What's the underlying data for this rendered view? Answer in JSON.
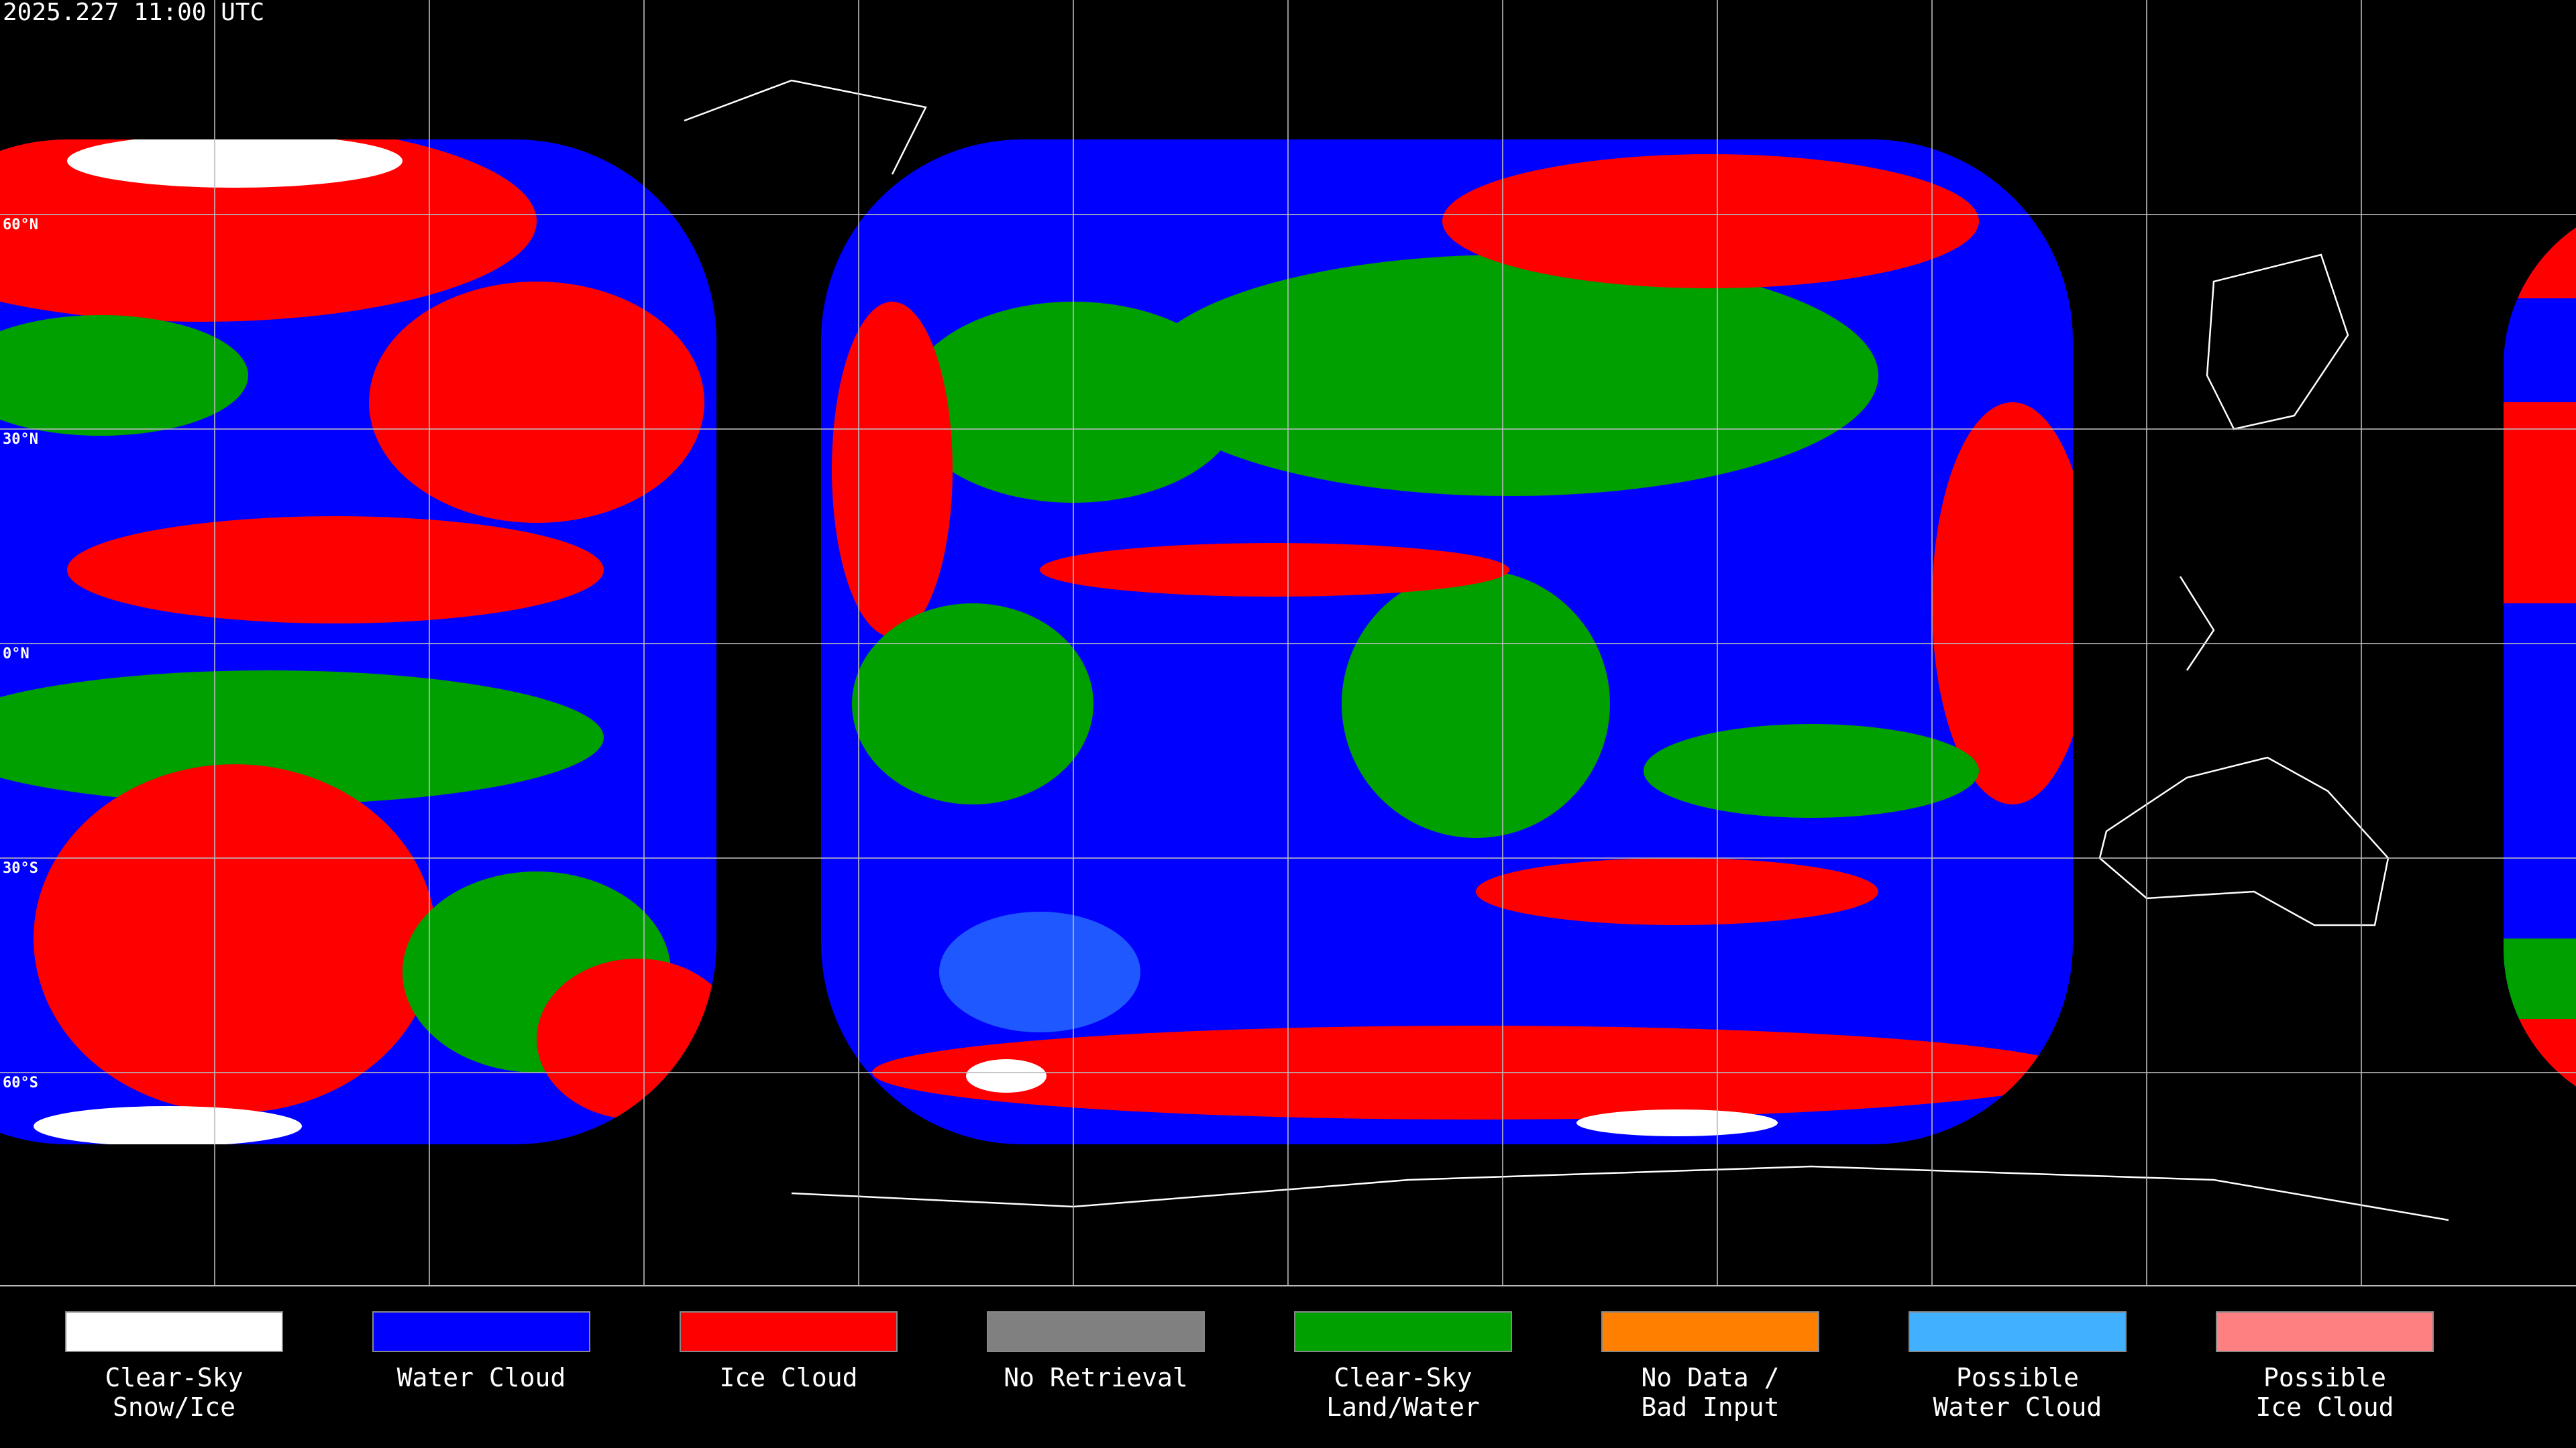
{
  "header": {
    "timestamp": "2025.227 11:00 UTC"
  },
  "lat_ticks": [
    {
      "value": 60,
      "label": "60°N"
    },
    {
      "value": 30,
      "label": "30°N"
    },
    {
      "value": 0,
      "label": "0°N"
    },
    {
      "value": -30,
      "label": "30°S"
    },
    {
      "value": -60,
      "label": "60°S"
    }
  ],
  "legend": [
    {
      "lines": [
        "Clear-Sky",
        "Snow/Ice"
      ],
      "color": "#ffffff"
    },
    {
      "lines": [
        "Water Cloud"
      ],
      "color": "#0000ff"
    },
    {
      "lines": [
        "Ice Cloud"
      ],
      "color": "#ff0000"
    },
    {
      "lines": [
        "No Retrieval"
      ],
      "color": "#808080"
    },
    {
      "lines": [
        "Clear-Sky",
        "Land/Water"
      ],
      "color": "#00a000"
    },
    {
      "lines": [
        "No Data /",
        "Bad Input"
      ],
      "color": "#ff8000"
    },
    {
      "lines": [
        "Possible",
        "Water Cloud"
      ],
      "color": "#40b0ff"
    },
    {
      "lines": [
        "Possible",
        "Ice Cloud"
      ],
      "color": "#ff8080"
    }
  ]
}
